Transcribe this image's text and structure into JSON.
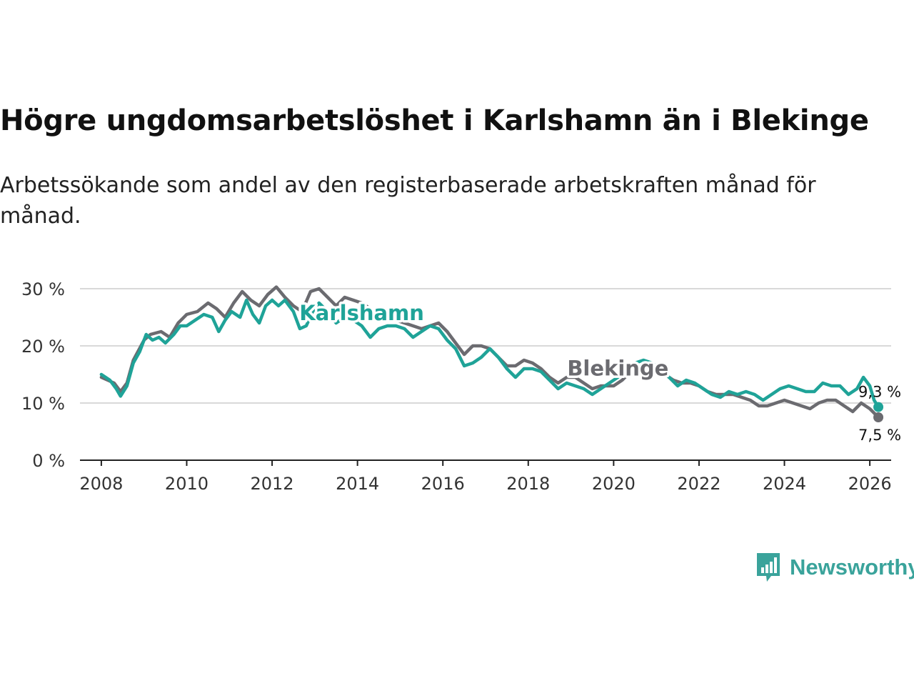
{
  "title": "Högre ungdomsarbetslöshet i Karlshamn än i Blekinge",
  "subtitle": "Arbetssökande som andel av den registerbaserade arbetskraften månad för månad.",
  "brand": {
    "name": "Newsworthy",
    "icon": "bar-chart-speech-bubble-icon",
    "color": "#3aa39b"
  },
  "chart_data": {
    "type": "line",
    "title": "Högre ungdomsarbetslöshet i Karlshamn än i Blekinge",
    "xlabel": "",
    "ylabel": "",
    "xlim": [
      2007.5,
      2026.5
    ],
    "ylim": [
      0,
      30
    ],
    "grid": true,
    "x_ticks": [
      2008,
      2010,
      2012,
      2014,
      2016,
      2018,
      2020,
      2022,
      2024,
      2026
    ],
    "x_tick_labels": [
      "2008",
      "2010",
      "2012",
      "2014",
      "2016",
      "2018",
      "2020",
      "2022",
      "2024",
      "2026"
    ],
    "y_ticks": [
      0,
      10,
      20,
      30
    ],
    "y_tick_labels": [
      "0 %",
      "10 %",
      "20 %",
      "30 %"
    ],
    "series": [
      {
        "name": "Blekinge",
        "color": "#6b6b70",
        "end_label": "7,5 %",
        "points": [
          [
            2008.0,
            14.5
          ],
          [
            2008.3,
            13.5
          ],
          [
            2008.45,
            12.0
          ],
          [
            2008.6,
            13.5
          ],
          [
            2008.75,
            17.5
          ],
          [
            2009.0,
            21.0
          ],
          [
            2009.15,
            22.0
          ],
          [
            2009.4,
            22.5
          ],
          [
            2009.6,
            21.5
          ],
          [
            2009.8,
            24.0
          ],
          [
            2010.0,
            25.5
          ],
          [
            2010.25,
            26.0
          ],
          [
            2010.5,
            27.5
          ],
          [
            2010.7,
            26.5
          ],
          [
            2010.9,
            25.0
          ],
          [
            2011.1,
            27.5
          ],
          [
            2011.3,
            29.5
          ],
          [
            2011.5,
            28.0
          ],
          [
            2011.7,
            27.0
          ],
          [
            2011.9,
            29.0
          ],
          [
            2012.1,
            30.3
          ],
          [
            2012.3,
            28.5
          ],
          [
            2012.5,
            27.0
          ],
          [
            2012.7,
            26.0
          ],
          [
            2012.9,
            29.5
          ],
          [
            2013.1,
            30.0
          ],
          [
            2013.3,
            28.5
          ],
          [
            2013.5,
            27.0
          ],
          [
            2013.7,
            28.5
          ],
          [
            2013.9,
            28.0
          ],
          [
            2014.1,
            27.5
          ],
          [
            2014.3,
            26.5
          ],
          [
            2014.5,
            25.5
          ],
          [
            2014.7,
            25.0
          ],
          [
            2014.9,
            24.5
          ],
          [
            2015.1,
            24.0
          ],
          [
            2015.3,
            23.5
          ],
          [
            2015.5,
            23.0
          ],
          [
            2015.7,
            23.5
          ],
          [
            2015.9,
            24.0
          ],
          [
            2016.1,
            22.5
          ],
          [
            2016.3,
            20.5
          ],
          [
            2016.5,
            18.5
          ],
          [
            2016.7,
            20.0
          ],
          [
            2016.9,
            20.0
          ],
          [
            2017.1,
            19.5
          ],
          [
            2017.3,
            18.0
          ],
          [
            2017.5,
            16.5
          ],
          [
            2017.7,
            16.5
          ],
          [
            2017.9,
            17.5
          ],
          [
            2018.1,
            17.0
          ],
          [
            2018.3,
            16.0
          ],
          [
            2018.5,
            14.5
          ],
          [
            2018.7,
            13.5
          ],
          [
            2018.9,
            14.5
          ],
          [
            2019.1,
            14.5
          ],
          [
            2019.3,
            13.5
          ],
          [
            2019.5,
            12.5
          ],
          [
            2019.7,
            13.0
          ],
          [
            2020.0,
            13.0
          ],
          [
            2020.2,
            14.0
          ],
          [
            2020.4,
            15.5
          ],
          [
            2020.6,
            16.5
          ],
          [
            2020.8,
            16.5
          ],
          [
            2021.0,
            16.0
          ],
          [
            2021.2,
            15.0
          ],
          [
            2021.4,
            14.0
          ],
          [
            2021.6,
            13.5
          ],
          [
            2021.8,
            13.5
          ],
          [
            2022.0,
            13.0
          ],
          [
            2022.2,
            12.0
          ],
          [
            2022.4,
            11.5
          ],
          [
            2022.6,
            11.5
          ],
          [
            2022.8,
            11.5
          ],
          [
            2023.0,
            11.0
          ],
          [
            2023.2,
            10.5
          ],
          [
            2023.4,
            9.5
          ],
          [
            2023.6,
            9.5
          ],
          [
            2023.8,
            10.0
          ],
          [
            2024.0,
            10.5
          ],
          [
            2024.2,
            10.0
          ],
          [
            2024.4,
            9.5
          ],
          [
            2024.6,
            9.0
          ],
          [
            2024.8,
            10.0
          ],
          [
            2025.0,
            10.5
          ],
          [
            2025.2,
            10.5
          ],
          [
            2025.4,
            9.5
          ],
          [
            2025.6,
            8.5
          ],
          [
            2025.8,
            10.0
          ],
          [
            2026.0,
            9.0
          ],
          [
            2026.2,
            7.5
          ]
        ]
      },
      {
        "name": "Karlshamn",
        "color": "#1fa398",
        "end_label": "9,3 %",
        "points": [
          [
            2008.0,
            15.0
          ],
          [
            2008.2,
            14.0
          ],
          [
            2008.35,
            12.5
          ],
          [
            2008.45,
            11.2
          ],
          [
            2008.6,
            13.0
          ],
          [
            2008.75,
            17.0
          ],
          [
            2008.9,
            19.0
          ],
          [
            2009.05,
            22.0
          ],
          [
            2009.2,
            21.0
          ],
          [
            2009.35,
            21.5
          ],
          [
            2009.5,
            20.5
          ],
          [
            2009.7,
            22.0
          ],
          [
            2009.85,
            23.5
          ],
          [
            2010.0,
            23.5
          ],
          [
            2010.2,
            24.5
          ],
          [
            2010.4,
            25.5
          ],
          [
            2010.6,
            25.0
          ],
          [
            2010.75,
            22.5
          ],
          [
            2010.9,
            24.5
          ],
          [
            2011.05,
            26.0
          ],
          [
            2011.25,
            25.0
          ],
          [
            2011.4,
            28.0
          ],
          [
            2011.55,
            25.5
          ],
          [
            2011.7,
            24.0
          ],
          [
            2011.85,
            27.0
          ],
          [
            2012.0,
            28.0
          ],
          [
            2012.15,
            27.0
          ],
          [
            2012.3,
            28.0
          ],
          [
            2012.5,
            26.0
          ],
          [
            2012.65,
            23.0
          ],
          [
            2012.8,
            23.5
          ],
          [
            2012.95,
            26.0
          ],
          [
            2013.1,
            27.5
          ],
          [
            2013.3,
            26.0
          ],
          [
            2013.5,
            24.0
          ],
          [
            2013.7,
            25.0
          ],
          [
            2013.9,
            24.5
          ],
          [
            2014.1,
            23.5
          ],
          [
            2014.3,
            21.5
          ],
          [
            2014.5,
            23.0
          ],
          [
            2014.7,
            23.5
          ],
          [
            2014.9,
            23.5
          ],
          [
            2015.1,
            23.0
          ],
          [
            2015.3,
            21.5
          ],
          [
            2015.5,
            22.5
          ],
          [
            2015.7,
            23.5
          ],
          [
            2015.9,
            23.0
          ],
          [
            2016.1,
            21.0
          ],
          [
            2016.3,
            19.5
          ],
          [
            2016.5,
            16.5
          ],
          [
            2016.7,
            17.0
          ],
          [
            2016.9,
            18.0
          ],
          [
            2017.1,
            19.5
          ],
          [
            2017.3,
            18.0
          ],
          [
            2017.5,
            16.0
          ],
          [
            2017.7,
            14.5
          ],
          [
            2017.9,
            16.0
          ],
          [
            2018.1,
            16.0
          ],
          [
            2018.3,
            15.5
          ],
          [
            2018.5,
            14.0
          ],
          [
            2018.7,
            12.5
          ],
          [
            2018.9,
            13.5
          ],
          [
            2019.1,
            13.0
          ],
          [
            2019.3,
            12.5
          ],
          [
            2019.5,
            11.5
          ],
          [
            2019.7,
            12.5
          ],
          [
            2019.9,
            13.5
          ],
          [
            2020.1,
            14.5
          ],
          [
            2020.3,
            16.0
          ],
          [
            2020.5,
            17.0
          ],
          [
            2020.7,
            17.5
          ],
          [
            2020.9,
            17.0
          ],
          [
            2021.1,
            16.0
          ],
          [
            2021.3,
            14.5
          ],
          [
            2021.5,
            13.0
          ],
          [
            2021.7,
            14.0
          ],
          [
            2021.9,
            13.5
          ],
          [
            2022.1,
            12.5
          ],
          [
            2022.3,
            11.5
          ],
          [
            2022.5,
            11.0
          ],
          [
            2022.7,
            12.0
          ],
          [
            2022.9,
            11.5
          ],
          [
            2023.1,
            12.0
          ],
          [
            2023.3,
            11.5
          ],
          [
            2023.5,
            10.5
          ],
          [
            2023.7,
            11.5
          ],
          [
            2023.9,
            12.5
          ],
          [
            2024.1,
            13.0
          ],
          [
            2024.3,
            12.5
          ],
          [
            2024.5,
            12.0
          ],
          [
            2024.7,
            12.0
          ],
          [
            2024.9,
            13.5
          ],
          [
            2025.1,
            13.0
          ],
          [
            2025.3,
            13.0
          ],
          [
            2025.5,
            11.5
          ],
          [
            2025.7,
            12.5
          ],
          [
            2025.85,
            14.5
          ],
          [
            2026.0,
            13.0
          ],
          [
            2026.1,
            10.5
          ],
          [
            2026.2,
            9.3
          ]
        ]
      }
    ],
    "annotations": [
      {
        "text": "Karlshamn",
        "series": "Karlshamn",
        "x": 2014.1,
        "y": 24.5
      },
      {
        "text": "Blekinge",
        "series": "Blekinge",
        "x": 2020.1,
        "y": 14.8
      }
    ]
  }
}
